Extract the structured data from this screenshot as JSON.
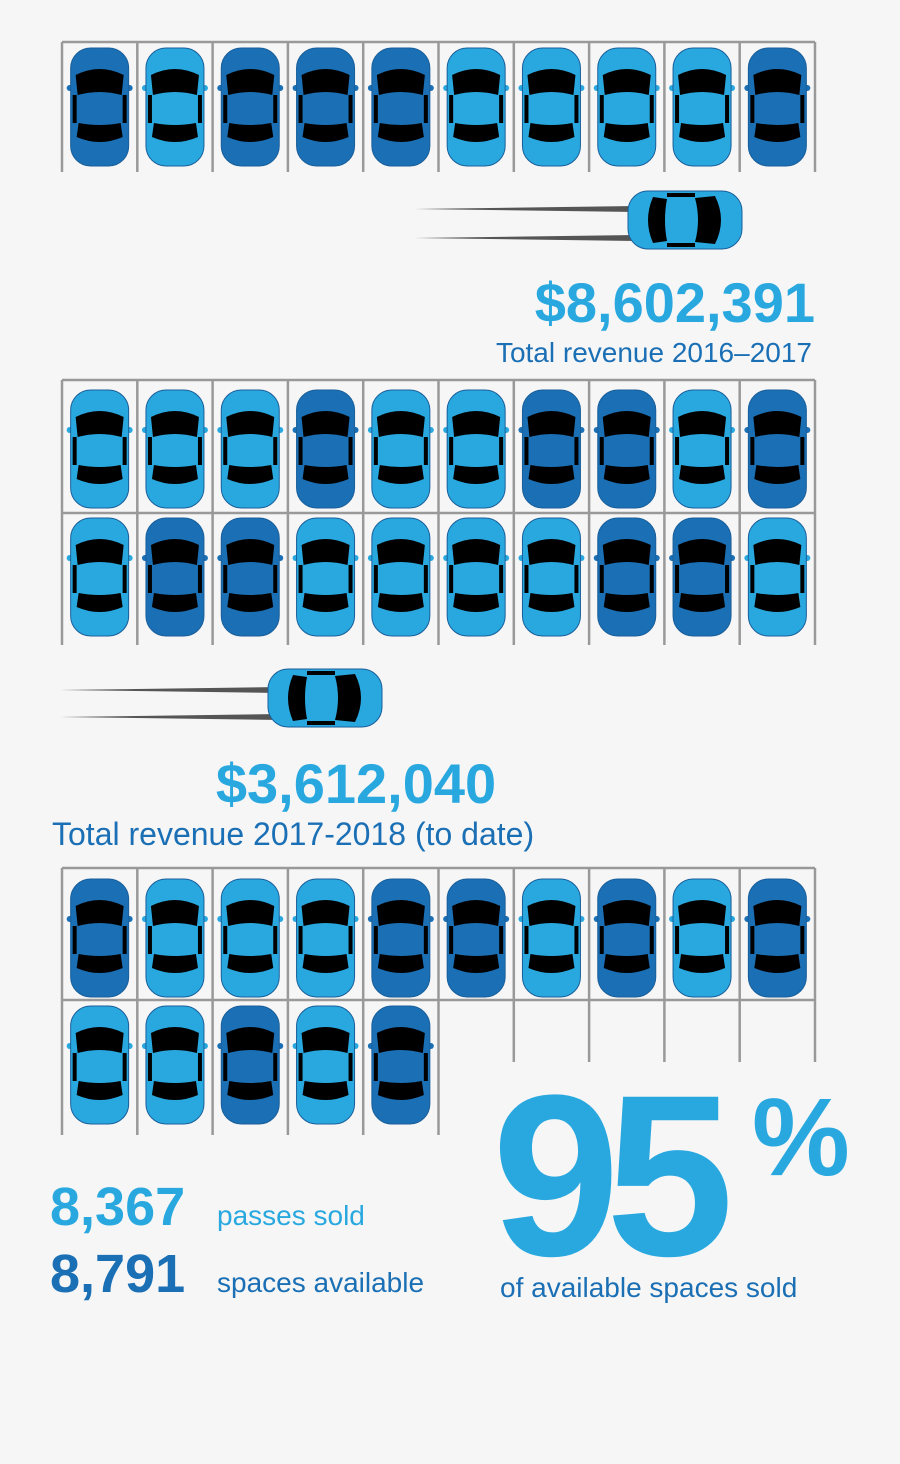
{
  "revenue_1": {
    "amount": "$8,602,391",
    "label": "Total revenue 2016–2017"
  },
  "revenue_2": {
    "amount": "$3,612,040",
    "label": "Total revenue 2017-2018 (to date)"
  },
  "passes": {
    "number": "8,367",
    "label": "passes sold"
  },
  "spaces": {
    "number": "8,791",
    "label": "spaces available"
  },
  "percent": {
    "number": "95",
    "sign": "%",
    "label": "of available spaces sold"
  }
}
